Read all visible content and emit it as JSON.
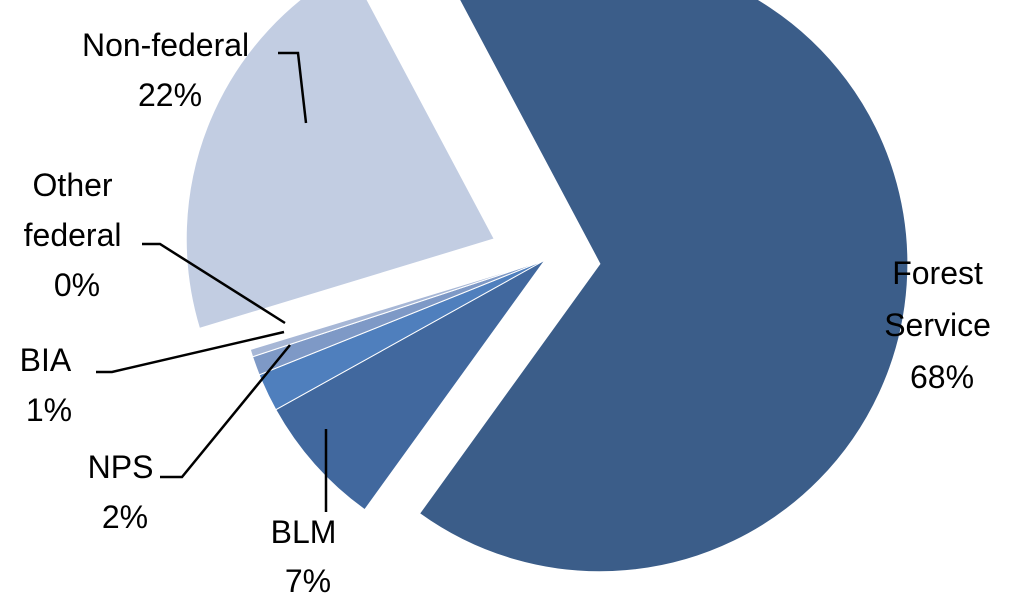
{
  "chart_data": {
    "type": "pie",
    "title": "",
    "slices": [
      {
        "label_lines": [
          "Forest",
          "Service"
        ],
        "percent_text": "68%",
        "value": 68,
        "color": "#3b5d89"
      },
      {
        "label_lines": [
          "BLM"
        ],
        "percent_text": "7%",
        "value": 7,
        "color": "#41689e"
      },
      {
        "label_lines": [
          "NPS"
        ],
        "percent_text": "2%",
        "value": 2,
        "color": "#4f7fbd"
      },
      {
        "label_lines": [
          "BIA"
        ],
        "percent_text": "1%",
        "value": 1,
        "color": "#7e99c6"
      },
      {
        "label_lines": [
          "Other",
          "federal"
        ],
        "percent_text": "0%",
        "value": 0.4,
        "color": "#a7b7d6"
      },
      {
        "label_lines": [
          "Non-federal"
        ],
        "percent_text": "22%",
        "value": 22,
        "color": "#c2cde2"
      }
    ],
    "exploded": true,
    "legend": "none"
  }
}
